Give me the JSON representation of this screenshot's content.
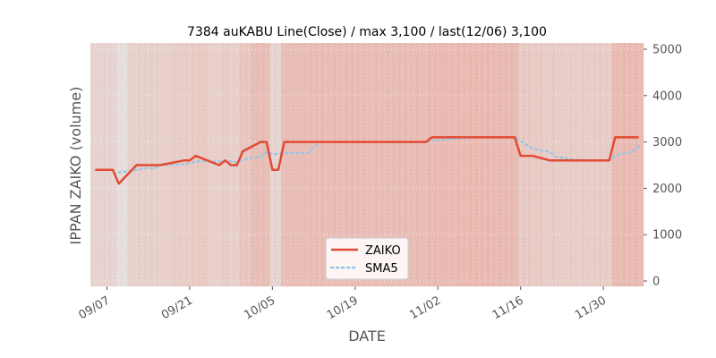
{
  "chart_data": {
    "type": "line",
    "title": "7384 auKABU Line(Close) / max 3,100 / last(12/06) 3,100",
    "xlabel": "DATE",
    "ylabel": "IPPAN ZAIKO (volume)",
    "ylim": [
      0,
      5000
    ],
    "yticks": [
      "0",
      "1000",
      "2000",
      "3000",
      "4000",
      "5000"
    ],
    "y_axis_side": "right",
    "xticks": [
      {
        "date": "2022-09-07",
        "label": "09/07"
      },
      {
        "date": "2022-09-21",
        "label": "09/21"
      },
      {
        "date": "2022-10-05",
        "label": "10/05"
      },
      {
        "date": "2022-10-19",
        "label": "10/19"
      },
      {
        "date": "2022-11-02",
        "label": "11/02"
      },
      {
        "date": "2022-11-16",
        "label": "11/16"
      },
      {
        "date": "2022-11-30",
        "label": "11/30"
      }
    ],
    "grid": true,
    "legend_position": "lower-center",
    "x": [
      "2022-09-05",
      "2022-09-06",
      "2022-09-07",
      "2022-09-08",
      "2022-09-09",
      "2022-09-12",
      "2022-09-13",
      "2022-09-14",
      "2022-09-15",
      "2022-09-16",
      "2022-09-20",
      "2022-09-21",
      "2022-09-22",
      "2022-09-26",
      "2022-09-27",
      "2022-09-28",
      "2022-09-29",
      "2022-09-30",
      "2022-10-03",
      "2022-10-04",
      "2022-10-05",
      "2022-10-06",
      "2022-10-07",
      "2022-10-11",
      "2022-10-12",
      "2022-10-13",
      "2022-10-14",
      "2022-10-17",
      "2022-10-18",
      "2022-10-19",
      "2022-10-20",
      "2022-10-21",
      "2022-10-24",
      "2022-10-25",
      "2022-10-26",
      "2022-10-27",
      "2022-10-28",
      "2022-10-31",
      "2022-11-01",
      "2022-11-02",
      "2022-11-04",
      "2022-11-07",
      "2022-11-08",
      "2022-11-09",
      "2022-11-10",
      "2022-11-11",
      "2022-11-14",
      "2022-11-15",
      "2022-11-16",
      "2022-11-17",
      "2022-11-18",
      "2022-11-21",
      "2022-11-22",
      "2022-11-24",
      "2022-11-25",
      "2022-11-28",
      "2022-11-29",
      "2022-11-30",
      "2022-12-01",
      "2022-12-02",
      "2022-12-05",
      "2022-12-06"
    ],
    "series": [
      {
        "name": "ZAIKO",
        "color": "#e24a33",
        "style": "solid",
        "values": [
          2400,
          2400,
          2400,
          2400,
          2100,
          2500,
          2500,
          2500,
          2500,
          2500,
          2600,
          2600,
          2700,
          2500,
          2600,
          2500,
          2500,
          2800,
          3000,
          3000,
          2400,
          2400,
          3000,
          3000,
          3000,
          3000,
          3000,
          3000,
          3000,
          3000,
          3000,
          3000,
          3000,
          3000,
          3000,
          3000,
          3000,
          3000,
          3100,
          3100,
          3100,
          3100,
          3100,
          3100,
          3100,
          3100,
          3100,
          3100,
          2700,
          2700,
          2700,
          2600,
          2600,
          2600,
          2600,
          2600,
          2600,
          2600,
          2600,
          3100,
          3100,
          3100
        ]
      },
      {
        "name": "SMA5",
        "color": "#92c6e6",
        "style": "dotted",
        "values": [
          null,
          null,
          null,
          null,
          2340,
          2400,
          2420,
          2440,
          2420,
          2500,
          2520,
          2540,
          2580,
          2580,
          2600,
          2580,
          2560,
          2620,
          2680,
          2780,
          2740,
          2740,
          2760,
          2760,
          2880,
          3000,
          3000,
          3000,
          3000,
          3000,
          3000,
          3000,
          3000,
          3000,
          3000,
          3000,
          3000,
          3000,
          3020,
          3040,
          3060,
          3080,
          3100,
          3100,
          3100,
          3100,
          3100,
          3100,
          3020,
          2940,
          2860,
          2780,
          2680,
          2640,
          2620,
          2600,
          2600,
          2600,
          2600,
          2700,
          2800,
          2900
        ]
      }
    ]
  }
}
